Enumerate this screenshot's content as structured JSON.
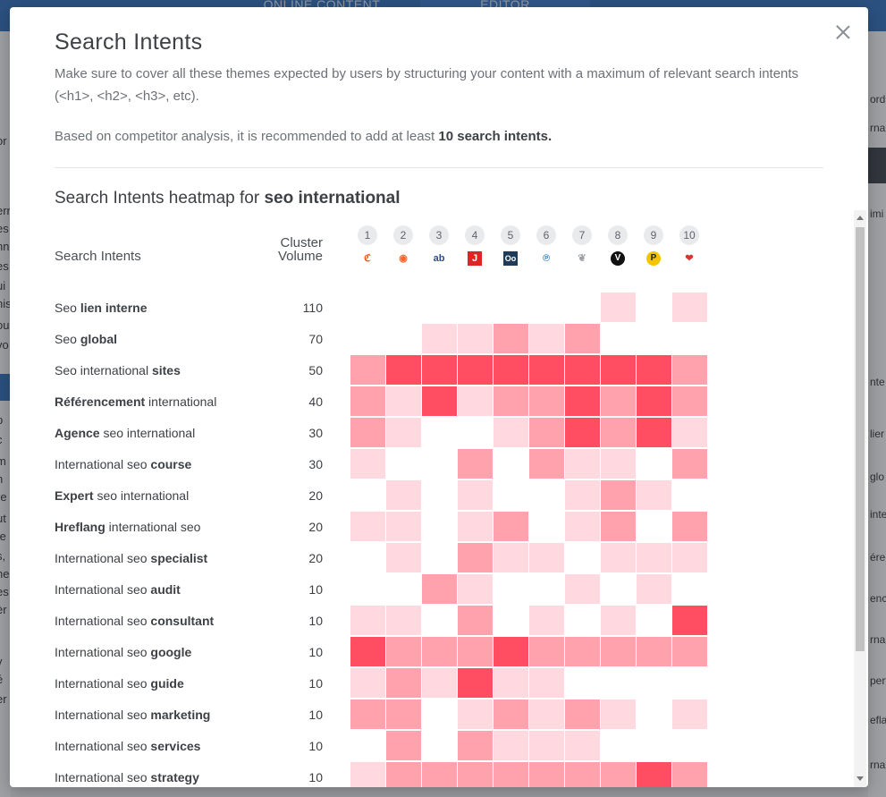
{
  "background": {
    "tabs": [
      "ONLINE CONTENT",
      "EDITOR"
    ],
    "left_fragments": [
      "or",
      "ern",
      "es",
      "nn",
      "es",
      "ui",
      "nis",
      "ou",
      "vo",
      "al",
      "p",
      "c",
      "m",
      "n",
      "re",
      "ut",
      "te",
      "s,",
      "ne",
      "es",
      "èr",
      "v",
      "é",
      "er"
    ],
    "right_fragments": [
      "ord",
      "rna",
      "imi",
      "nte",
      "lier",
      "glo",
      "inte",
      "ére",
      "ence",
      "rna",
      "pert",
      "eflan",
      "rna"
    ]
  },
  "modal": {
    "title": "Search Intents",
    "description": "Make sure to cover all these themes expected by users by structuring your content with a maximum of relevant search intents (<h1>, <h2>, <h3>, etc).",
    "recommendation_prefix": "Based on competitor analysis, it is recommended to add at least ",
    "recommendation_bold": "10 search intents.",
    "heatmap_title_prefix": "Search Intents heatmap for ",
    "heatmap_keyword": "seo international",
    "col_intents": "Search Intents",
    "col_volume_line1": "Cluster",
    "col_volume_line2": "Volume"
  },
  "competitors": [
    {
      "rank": "1",
      "icon": "c-logo-icon",
      "glyph": "ℭ",
      "color": "#f0561e"
    },
    {
      "rank": "2",
      "icon": "semrush-logo-icon",
      "glyph": "◉",
      "color": "#ff642d"
    },
    {
      "rank": "3",
      "icon": "ab-logo-icon",
      "glyph": "ab",
      "color": "#2a4e8c"
    },
    {
      "rank": "4",
      "icon": "j-logo-icon",
      "glyph": "J",
      "color": "#e02424"
    },
    {
      "rank": "5",
      "icon": "oo-logo-icon",
      "glyph": "Oo",
      "color": "#1e3c5a"
    },
    {
      "rank": "6",
      "icon": "p-circle-logo-icon",
      "glyph": "℗",
      "color": "#2a7fb8"
    },
    {
      "rank": "7",
      "icon": "leaf-logo-icon",
      "glyph": "❦",
      "color": "#9aa0a6"
    },
    {
      "rank": "8",
      "icon": "v-logo-icon",
      "glyph": "V",
      "color": "#c0202a"
    },
    {
      "rank": "9",
      "icon": "p-yellow-logo-icon",
      "glyph": "P",
      "color": "#e8b800"
    },
    {
      "rank": "10",
      "icon": "heart-logo-icon",
      "glyph": "❤",
      "color": "#e03030"
    }
  ],
  "heat_colors": [
    "#ffffff",
    "#ffd9df",
    "#ffa2ae",
    "#ff4d61"
  ],
  "rows": [
    {
      "parts": [
        {
          "t": "Seo ",
          "b": false
        },
        {
          "t": "lien interne",
          "b": true
        }
      ],
      "volume": "110",
      "cells": [
        0,
        0,
        0,
        0,
        0,
        0,
        0,
        1,
        0,
        1
      ]
    },
    {
      "parts": [
        {
          "t": "Seo ",
          "b": false
        },
        {
          "t": "global",
          "b": true
        }
      ],
      "volume": "70",
      "cells": [
        0,
        0,
        1,
        1,
        2,
        1,
        2,
        0,
        0,
        0
      ]
    },
    {
      "parts": [
        {
          "t": "Seo international ",
          "b": false
        },
        {
          "t": "sites",
          "b": true
        }
      ],
      "volume": "50",
      "cells": [
        2,
        3,
        3,
        3,
        3,
        3,
        3,
        3,
        3,
        2
      ]
    },
    {
      "parts": [
        {
          "t": "Référencement",
          "b": true
        },
        {
          "t": " international",
          "b": false
        }
      ],
      "volume": "40",
      "cells": [
        2,
        1,
        3,
        1,
        2,
        2,
        3,
        2,
        3,
        2
      ]
    },
    {
      "parts": [
        {
          "t": "Agence",
          "b": true
        },
        {
          "t": " seo international",
          "b": false
        }
      ],
      "volume": "30",
      "cells": [
        2,
        1,
        0,
        0,
        1,
        2,
        3,
        2,
        3,
        1
      ]
    },
    {
      "parts": [
        {
          "t": "International seo ",
          "b": false
        },
        {
          "t": "course",
          "b": true
        }
      ],
      "volume": "30",
      "cells": [
        1,
        0,
        0,
        2,
        0,
        2,
        1,
        1,
        0,
        2
      ]
    },
    {
      "parts": [
        {
          "t": "Expert",
          "b": true
        },
        {
          "t": " seo international",
          "b": false
        }
      ],
      "volume": "20",
      "cells": [
        0,
        1,
        0,
        1,
        0,
        0,
        1,
        2,
        1,
        0
      ]
    },
    {
      "parts": [
        {
          "t": "Hreflang",
          "b": true
        },
        {
          "t": " international seo",
          "b": false
        }
      ],
      "volume": "20",
      "cells": [
        1,
        1,
        0,
        1,
        2,
        0,
        1,
        2,
        0,
        2
      ]
    },
    {
      "parts": [
        {
          "t": "International seo ",
          "b": false
        },
        {
          "t": "specialist",
          "b": true
        }
      ],
      "volume": "20",
      "cells": [
        0,
        1,
        0,
        2,
        1,
        1,
        0,
        1,
        1,
        1
      ]
    },
    {
      "parts": [
        {
          "t": "International seo ",
          "b": false
        },
        {
          "t": "audit",
          "b": true
        }
      ],
      "volume": "10",
      "cells": [
        0,
        0,
        2,
        1,
        0,
        0,
        1,
        0,
        1,
        0
      ]
    },
    {
      "parts": [
        {
          "t": "International seo ",
          "b": false
        },
        {
          "t": "consultant",
          "b": true
        }
      ],
      "volume": "10",
      "cells": [
        1,
        1,
        0,
        2,
        0,
        1,
        0,
        1,
        0,
        3
      ]
    },
    {
      "parts": [
        {
          "t": "International seo ",
          "b": false
        },
        {
          "t": "google",
          "b": true
        }
      ],
      "volume": "10",
      "cells": [
        3,
        2,
        2,
        2,
        3,
        2,
        2,
        2,
        2,
        2
      ]
    },
    {
      "parts": [
        {
          "t": "International seo ",
          "b": false
        },
        {
          "t": "guide",
          "b": true
        }
      ],
      "volume": "10",
      "cells": [
        1,
        2,
        1,
        3,
        1,
        1,
        0,
        0,
        0,
        0
      ]
    },
    {
      "parts": [
        {
          "t": "International seo ",
          "b": false
        },
        {
          "t": "marketing",
          "b": true
        }
      ],
      "volume": "10",
      "cells": [
        2,
        2,
        0,
        1,
        2,
        1,
        2,
        1,
        0,
        1
      ]
    },
    {
      "parts": [
        {
          "t": "International seo ",
          "b": false
        },
        {
          "t": "services",
          "b": true
        }
      ],
      "volume": "10",
      "cells": [
        0,
        2,
        0,
        2,
        1,
        1,
        1,
        0,
        0,
        0
      ]
    },
    {
      "parts": [
        {
          "t": "International seo ",
          "b": false
        },
        {
          "t": "strategy",
          "b": true
        }
      ],
      "volume": "10",
      "cells": [
        1,
        2,
        2,
        2,
        2,
        2,
        2,
        2,
        3,
        2
      ]
    }
  ]
}
